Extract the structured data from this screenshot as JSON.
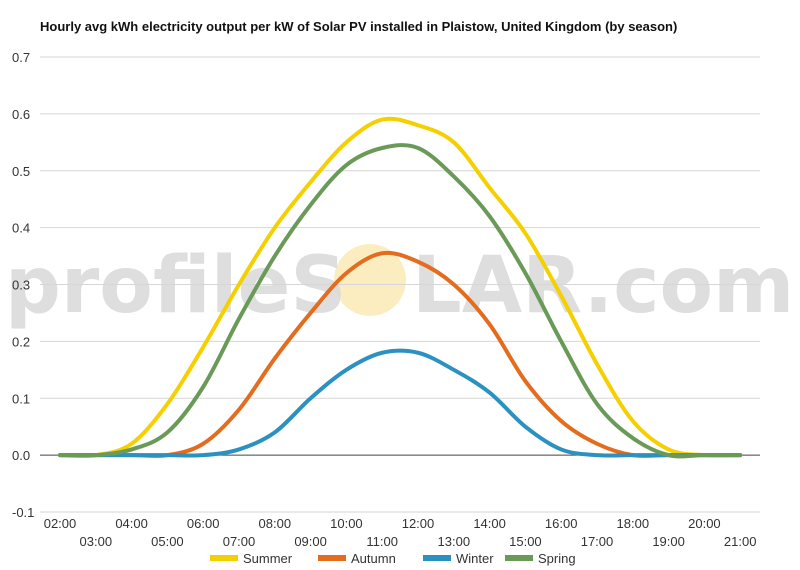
{
  "chart_data": {
    "type": "line",
    "title": "Hourly avg kWh electricity output per kW of Solar PV installed in Plaistow, United Kingdom (by season)",
    "xlabel": "",
    "ylabel": "",
    "ylim": [
      -0.1,
      0.7
    ],
    "yticks": [
      "0.7",
      "0.6",
      "0.5",
      "0.4",
      "0.3",
      "0.2",
      "0.1",
      "0.0",
      "-0.1"
    ],
    "x": [
      "02:00",
      "03:00",
      "04:00",
      "05:00",
      "06:00",
      "07:00",
      "08:00",
      "09:00",
      "10:00",
      "11:00",
      "12:00",
      "13:00",
      "14:00",
      "15:00",
      "16:00",
      "17:00",
      "18:00",
      "19:00",
      "20:00",
      "21:00"
    ],
    "grid": true,
    "legend_position": "bottom",
    "series": [
      {
        "name": "Summer",
        "color": "#f5d000",
        "values": [
          0.0,
          0.0,
          0.02,
          0.09,
          0.19,
          0.3,
          0.4,
          0.48,
          0.55,
          0.59,
          0.58,
          0.55,
          0.47,
          0.39,
          0.28,
          0.16,
          0.06,
          0.01,
          0.0,
          0.0
        ]
      },
      {
        "name": "Autumn",
        "color": "#e46c1e",
        "values": [
          0.0,
          0.0,
          0.0,
          0.0,
          0.02,
          0.08,
          0.17,
          0.25,
          0.32,
          0.355,
          0.34,
          0.3,
          0.23,
          0.13,
          0.06,
          0.02,
          0.0,
          0.0,
          0.0,
          0.0
        ]
      },
      {
        "name": "Winter",
        "color": "#2a91c0",
        "values": [
          0.0,
          0.0,
          0.0,
          0.0,
          0.0,
          0.01,
          0.04,
          0.1,
          0.15,
          0.18,
          0.18,
          0.15,
          0.11,
          0.05,
          0.01,
          0.0,
          0.0,
          0.0,
          0.0,
          0.0
        ]
      },
      {
        "name": "Spring",
        "color": "#6a9a57",
        "values": [
          0.0,
          0.0,
          0.01,
          0.04,
          0.12,
          0.24,
          0.35,
          0.44,
          0.51,
          0.54,
          0.54,
          0.49,
          0.42,
          0.32,
          0.2,
          0.09,
          0.03,
          0.0,
          0.0,
          0.0
        ]
      }
    ]
  },
  "watermark": {
    "left": "profileS",
    "right": "LAR.com"
  }
}
